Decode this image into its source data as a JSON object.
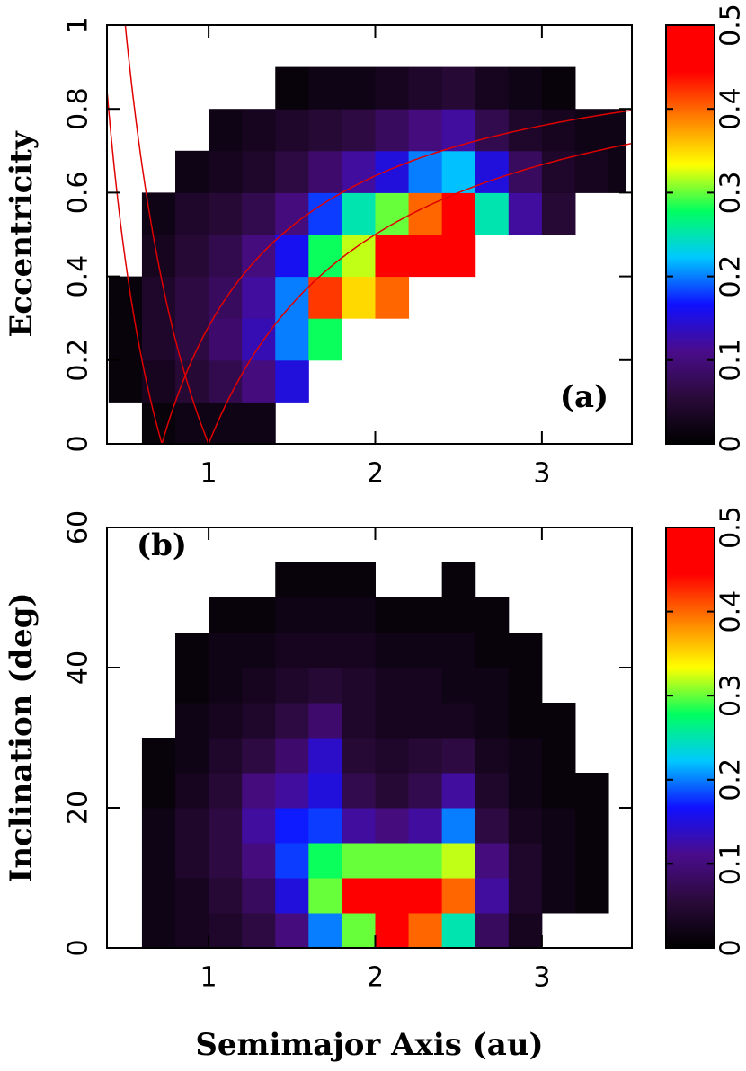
{
  "chart_data": [
    {
      "type": "heatmap",
      "ylabel": "Eccentricity",
      "annotation": "(a)",
      "xlim": [
        0.39,
        3.54
      ],
      "xticks": [
        1,
        2,
        3
      ],
      "ylim": [
        0,
        1
      ],
      "yticks": [
        0,
        0.2,
        0.4,
        0.6,
        0.8,
        1
      ],
      "xbins": [
        0.4,
        0.6,
        0.8,
        1.0,
        1.2,
        1.4,
        1.6,
        1.8,
        2.0,
        2.2,
        2.4,
        2.6,
        2.8,
        3.0,
        3.2,
        3.4,
        3.5
      ],
      "ybins": [
        0,
        0.1,
        0.2,
        0.3,
        0.4,
        0.5,
        0.6,
        0.7,
        0.8,
        0.9,
        1.0
      ],
      "z": [
        [
          null,
          0.01,
          0.02,
          0.02,
          0.02,
          null,
          null,
          null,
          null,
          null,
          null,
          null,
          null,
          null,
          null,
          null
        ],
        [
          0.01,
          0.03,
          0.05,
          0.07,
          0.1,
          0.15,
          null,
          null,
          null,
          null,
          null,
          null,
          null,
          null,
          null,
          null
        ],
        [
          0.01,
          0.04,
          0.06,
          0.09,
          0.13,
          0.2,
          0.28,
          null,
          null,
          null,
          null,
          null,
          null,
          null,
          null,
          null
        ],
        [
          0.01,
          0.04,
          0.06,
          0.08,
          0.12,
          0.2,
          0.42,
          0.35,
          0.4,
          null,
          null,
          null,
          null,
          null,
          null,
          null
        ],
        [
          null,
          0.03,
          0.05,
          0.07,
          0.1,
          0.16,
          0.28,
          0.32,
          0.5,
          0.5,
          0.5,
          null,
          null,
          null,
          null,
          null
        ],
        [
          null,
          0.02,
          0.04,
          0.05,
          0.07,
          0.1,
          0.18,
          0.25,
          0.3,
          0.4,
          0.5,
          0.25,
          0.12,
          0.05,
          null,
          null
        ],
        [
          null,
          null,
          0.02,
          0.03,
          0.04,
          0.06,
          0.09,
          0.12,
          0.15,
          0.2,
          0.22,
          0.15,
          0.08,
          0.04,
          0.03,
          0.02
        ],
        [
          null,
          null,
          null,
          0.02,
          0.03,
          0.04,
          0.05,
          0.06,
          0.08,
          0.1,
          0.12,
          0.07,
          0.04,
          0.03,
          0.02,
          0.02
        ],
        [
          null,
          null,
          null,
          null,
          null,
          0.01,
          0.02,
          0.02,
          0.03,
          0.04,
          0.05,
          0.03,
          0.02,
          0.01,
          null,
          null
        ],
        [
          null,
          null,
          null,
          null,
          null,
          null,
          null,
          null,
          null,
          null,
          null,
          null,
          null,
          null,
          null,
          null
        ]
      ],
      "colormap": [
        "#000000",
        "#2a0a3a",
        "#4a0c8c",
        "#1010ff",
        "#00c8ff",
        "#00ff60",
        "#ffff00",
        "#ff8000",
        "#ff0000",
        "#ff0000"
      ],
      "clim": [
        0,
        0.5
      ],
      "cticks": [
        0,
        0.1,
        0.2,
        0.3,
        0.4,
        0.5
      ],
      "q_curves": [
        0.72,
        1
      ],
      "Q_curves": [
        0.72,
        1
      ],
      "curve_color": "#e00000"
    },
    {
      "type": "heatmap",
      "xlabel": "Semimajor Axis (au)",
      "ylabel": "Inclination (deg)",
      "annotation": "(b)",
      "xlim": [
        0.39,
        3.54
      ],
      "xticks": [
        1,
        2,
        3
      ],
      "ylim": [
        0,
        60
      ],
      "yticks": [
        0,
        20,
        40,
        60
      ],
      "xbins": [
        0.4,
        0.6,
        0.8,
        1.0,
        1.2,
        1.4,
        1.6,
        1.8,
        2.0,
        2.2,
        2.4,
        2.6,
        2.8,
        3.0,
        3.2,
        3.4,
        3.5
      ],
      "ybins": [
        0,
        5,
        10,
        15,
        20,
        25,
        30,
        35,
        40,
        45,
        50,
        55,
        60
      ],
      "z": [
        [
          null,
          0.02,
          0.03,
          0.04,
          0.06,
          0.1,
          0.2,
          0.3,
          0.5,
          0.4,
          0.25,
          0.08,
          0.03,
          null,
          null,
          null
        ],
        [
          null,
          0.02,
          0.03,
          0.05,
          0.08,
          0.15,
          0.3,
          0.45,
          0.5,
          0.48,
          0.4,
          0.12,
          0.04,
          0.02,
          0.01,
          null
        ],
        [
          null,
          0.02,
          0.04,
          0.06,
          0.1,
          0.18,
          0.28,
          0.3,
          0.3,
          0.3,
          0.32,
          0.1,
          0.04,
          0.02,
          0.01,
          null
        ],
        [
          null,
          0.02,
          0.04,
          0.06,
          0.12,
          0.17,
          0.18,
          0.12,
          0.1,
          0.12,
          0.2,
          0.06,
          0.03,
          0.02,
          0.01,
          null
        ],
        [
          null,
          0.01,
          0.03,
          0.05,
          0.1,
          0.12,
          0.15,
          0.07,
          0.05,
          0.07,
          0.12,
          0.04,
          0.02,
          0.01,
          0.01,
          null
        ],
        [
          null,
          0.01,
          0.02,
          0.04,
          0.06,
          0.09,
          0.14,
          0.05,
          0.04,
          0.05,
          0.06,
          0.03,
          0.02,
          0.01,
          null,
          null
        ],
        [
          null,
          null,
          0.02,
          0.03,
          0.04,
          0.06,
          0.09,
          0.04,
          0.03,
          0.03,
          0.03,
          0.02,
          0.01,
          0.01,
          null,
          null
        ],
        [
          null,
          null,
          0.01,
          0.02,
          0.03,
          0.04,
          0.05,
          0.04,
          0.03,
          0.03,
          0.02,
          0.02,
          0.01,
          null,
          null,
          null
        ],
        [
          null,
          null,
          0.01,
          0.02,
          0.02,
          0.03,
          0.03,
          0.03,
          0.02,
          0.02,
          0.02,
          0.01,
          0.01,
          null,
          null,
          null
        ],
        [
          null,
          null,
          null,
          0.01,
          0.01,
          0.02,
          0.02,
          0.02,
          0.01,
          0.01,
          0.01,
          0.01,
          null,
          null,
          null,
          null
        ],
        [
          null,
          null,
          null,
          null,
          null,
          0.01,
          0.01,
          0.01,
          null,
          null,
          0.01,
          null,
          null,
          null,
          null,
          null
        ],
        [
          null,
          null,
          null,
          null,
          null,
          null,
          null,
          null,
          null,
          null,
          null,
          null,
          null,
          null,
          null,
          null
        ]
      ],
      "colormap": [
        "#000000",
        "#2a0a3a",
        "#4a0c8c",
        "#1010ff",
        "#00c8ff",
        "#00ff60",
        "#ffff00",
        "#ff8000",
        "#ff0000",
        "#ff0000"
      ],
      "clim": [
        0,
        0.5
      ],
      "cticks": [
        0,
        0.1,
        0.2,
        0.3,
        0.4,
        0.5
      ]
    }
  ]
}
